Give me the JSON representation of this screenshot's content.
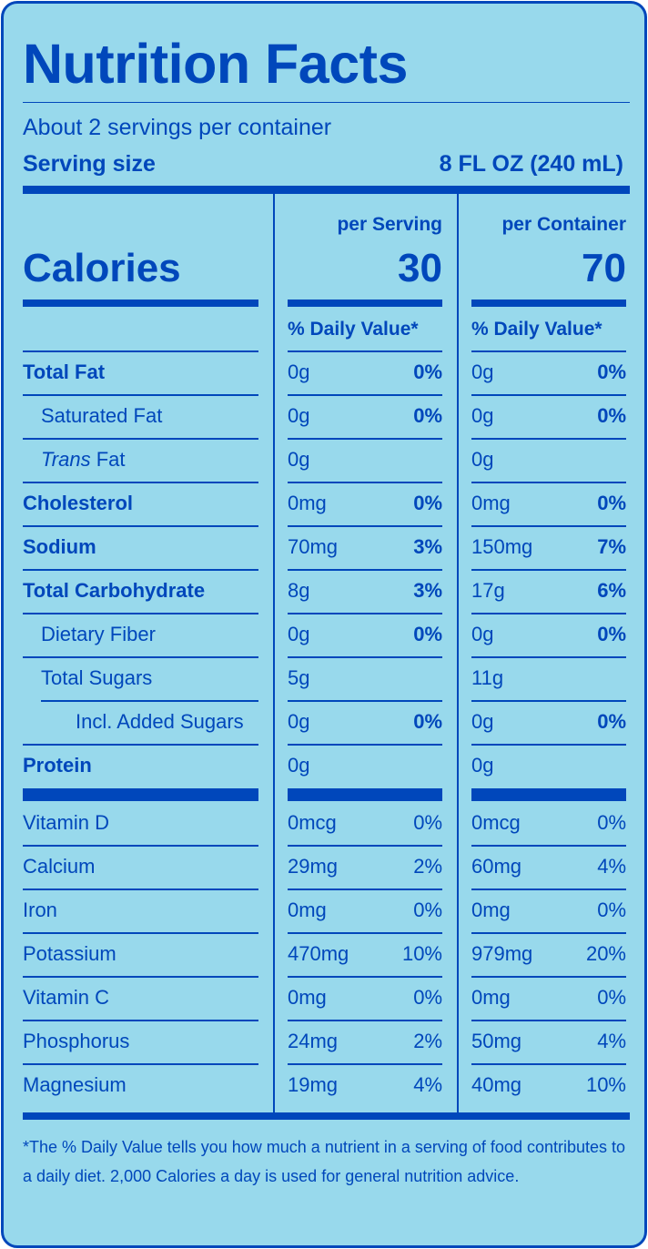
{
  "title": "Nutrition Facts",
  "servings_per_container": "About 2 servings per container",
  "serving_size_label": "Serving size",
  "serving_size_value": "8 FL OZ (240 mL)",
  "columns": {
    "per_serving": "per Serving",
    "per_container": "per Container"
  },
  "calories": {
    "label": "Calories",
    "per_serving": "30",
    "per_container": "70"
  },
  "dv_header": "% Daily Value*",
  "nutrients": [
    {
      "name": "Total Fat",
      "style": "bold",
      "s_amt": "0g",
      "s_dv": "0%",
      "c_amt": "0g",
      "c_dv": "0%"
    },
    {
      "name": "Saturated Fat",
      "style": "indent",
      "s_amt": "0g",
      "s_dv": "0%",
      "c_amt": "0g",
      "c_dv": "0%"
    },
    {
      "name_italic": "Trans",
      "name": " Fat",
      "style": "indent",
      "s_amt": "0g",
      "s_dv": "",
      "c_amt": "0g",
      "c_dv": ""
    },
    {
      "name": "Cholesterol",
      "style": "bold",
      "s_amt": "0mg",
      "s_dv": "0%",
      "c_amt": "0mg",
      "c_dv": "0%"
    },
    {
      "name": "Sodium",
      "style": "bold",
      "s_amt": "70mg",
      "s_dv": "3%",
      "c_amt": "150mg",
      "c_dv": "7%"
    },
    {
      "name": "Total Carbohydrate",
      "style": "bold",
      "s_amt": "8g",
      "s_dv": "3%",
      "c_amt": "17g",
      "c_dv": "6%"
    },
    {
      "name": "Dietary Fiber",
      "style": "indent",
      "s_amt": "0g",
      "s_dv": "0%",
      "c_amt": "0g",
      "c_dv": "0%"
    },
    {
      "name": "Total Sugars",
      "style": "indent",
      "s_amt": "5g",
      "s_dv": "",
      "c_amt": "11g",
      "c_dv": ""
    },
    {
      "name": "Incl. Added Sugars",
      "style": "indent2",
      "s_amt": "0g",
      "s_dv": "0%",
      "c_amt": "0g",
      "c_dv": "0%"
    },
    {
      "name": "Protein",
      "style": "bold",
      "s_amt": "0g",
      "s_dv": "",
      "c_amt": "0g",
      "c_dv": ""
    }
  ],
  "vitamins": [
    {
      "name": "Vitamin D",
      "s_amt": "0mcg",
      "s_dv": "0%",
      "c_amt": "0mcg",
      "c_dv": "0%"
    },
    {
      "name": "Calcium",
      "s_amt": "29mg",
      "s_dv": "2%",
      "c_amt": "60mg",
      "c_dv": "4%"
    },
    {
      "name": "Iron",
      "s_amt": "0mg",
      "s_dv": "0%",
      "c_amt": "0mg",
      "c_dv": "0%"
    },
    {
      "name": "Potassium",
      "s_amt": "470mg",
      "s_dv": "10%",
      "c_amt": "979mg",
      "c_dv": "20%"
    },
    {
      "name": "Vitamin C",
      "s_amt": "0mg",
      "s_dv": "0%",
      "c_amt": "0mg",
      "c_dv": "0%"
    },
    {
      "name": "Phosphorus",
      "s_amt": "24mg",
      "s_dv": "2%",
      "c_amt": "50mg",
      "c_dv": "4%"
    },
    {
      "name": "Magnesium",
      "s_amt": "19mg",
      "s_dv": "4%",
      "c_amt": "40mg",
      "c_dv": "10%"
    }
  ],
  "footnote": "*The % Daily Value tells you how much a nutrient in a serving of food contributes to a daily diet. 2,000 Calories a day is used for general nutrition advice."
}
